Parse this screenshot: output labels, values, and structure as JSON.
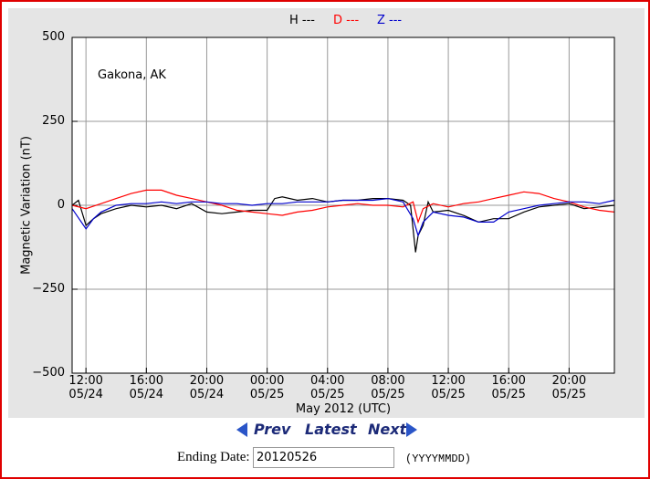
{
  "chart_data": {
    "type": "line",
    "annotation": "Gakona, AK",
    "xlabel": "May 2012 (UTC)",
    "ylabel": "Magnetic Variation (nT)",
    "xlim": [
      "2012-05-24T11:05",
      "2012-05-25T23:00"
    ],
    "xticks": [
      {
        "value": "2012-05-24T12:00",
        "label": "12:00\n05/24"
      },
      {
        "value": "2012-05-24T16:00",
        "label": "16:00\n05/24"
      },
      {
        "value": "2012-05-24T20:00",
        "label": "20:00\n05/24"
      },
      {
        "value": "2012-05-25T00:00",
        "label": "00:00\n05/25"
      },
      {
        "value": "2012-05-25T04:00",
        "label": "04:00\n05/25"
      },
      {
        "value": "2012-05-25T08:00",
        "label": "08:00\n05/25"
      },
      {
        "value": "2012-05-25T12:00",
        "label": "12:00\n05/25"
      },
      {
        "value": "2012-05-25T16:00",
        "label": "16:00\n05/25"
      },
      {
        "value": "2012-05-25T20:00",
        "label": "20:00\n05/25"
      }
    ],
    "ylim": [
      -500,
      500
    ],
    "yticks": [
      {
        "value": -500,
        "label": "−500"
      },
      {
        "value": -250,
        "label": "−250"
      },
      0,
      250,
      500
    ],
    "grid": true,
    "series": [
      {
        "name": "H ---",
        "color": "#000000",
        "x": [
          "2012-05-24T11:05",
          "2012-05-24T11:30",
          "2012-05-24T12:00",
          "2012-05-24T12:30",
          "2012-05-24T13:00",
          "2012-05-24T14:00",
          "2012-05-24T15:00",
          "2012-05-24T16:00",
          "2012-05-24T17:00",
          "2012-05-24T18:00",
          "2012-05-24T19:00",
          "2012-05-24T20:00",
          "2012-05-24T21:00",
          "2012-05-24T22:00",
          "2012-05-24T23:00",
          "2012-05-25T00:00",
          "2012-05-25T00:30",
          "2012-05-25T01:00",
          "2012-05-25T02:00",
          "2012-05-25T03:00",
          "2012-05-25T04:00",
          "2012-05-25T05:00",
          "2012-05-25T06:00",
          "2012-05-25T07:00",
          "2012-05-25T08:00",
          "2012-05-25T09:00",
          "2012-05-25T09:30",
          "2012-05-25T09:50",
          "2012-05-25T10:00",
          "2012-05-25T10:20",
          "2012-05-25T10:40",
          "2012-05-25T11:00",
          "2012-05-25T12:00",
          "2012-05-25T13:00",
          "2012-05-25T14:00",
          "2012-05-25T15:00",
          "2012-05-25T16:00",
          "2012-05-25T17:00",
          "2012-05-25T18:00",
          "2012-05-25T19:00",
          "2012-05-25T20:00",
          "2012-05-25T21:00",
          "2012-05-25T22:00",
          "2012-05-25T23:00"
        ],
        "values": [
          0,
          15,
          -60,
          -40,
          -25,
          -10,
          0,
          -5,
          0,
          -10,
          5,
          -20,
          -25,
          -20,
          -15,
          -15,
          20,
          25,
          15,
          20,
          10,
          15,
          15,
          20,
          20,
          15,
          0,
          -140,
          -90,
          -60,
          10,
          -20,
          -15,
          -30,
          -50,
          -40,
          -40,
          -20,
          -5,
          0,
          5,
          -10,
          -5,
          0
        ]
      },
      {
        "name": "D ---",
        "color": "#ff0000",
        "x": [
          "2012-05-24T11:05",
          "2012-05-24T12:00",
          "2012-05-24T13:00",
          "2012-05-24T14:00",
          "2012-05-24T15:00",
          "2012-05-24T16:00",
          "2012-05-24T17:00",
          "2012-05-24T18:00",
          "2012-05-24T19:00",
          "2012-05-24T20:00",
          "2012-05-24T21:00",
          "2012-05-24T22:00",
          "2012-05-24T23:00",
          "2012-05-25T00:00",
          "2012-05-25T01:00",
          "2012-05-25T02:00",
          "2012-05-25T03:00",
          "2012-05-25T04:00",
          "2012-05-25T05:00",
          "2012-05-25T06:00",
          "2012-05-25T07:00",
          "2012-05-25T08:00",
          "2012-05-25T09:00",
          "2012-05-25T09:40",
          "2012-05-25T10:00",
          "2012-05-25T10:20",
          "2012-05-25T11:00",
          "2012-05-25T12:00",
          "2012-05-25T13:00",
          "2012-05-25T14:00",
          "2012-05-25T15:00",
          "2012-05-25T16:00",
          "2012-05-25T17:00",
          "2012-05-25T18:00",
          "2012-05-25T19:00",
          "2012-05-25T20:00",
          "2012-05-25T21:00",
          "2012-05-25T22:00",
          "2012-05-25T23:00"
        ],
        "values": [
          0,
          -10,
          5,
          20,
          35,
          45,
          45,
          30,
          20,
          10,
          0,
          -15,
          -20,
          -25,
          -30,
          -20,
          -15,
          -5,
          0,
          5,
          0,
          0,
          -5,
          10,
          -50,
          -10,
          5,
          -5,
          5,
          10,
          20,
          30,
          40,
          35,
          20,
          10,
          -5,
          -15,
          -20
        ]
      },
      {
        "name": "Z ---",
        "color": "#0000cc",
        "x": [
          "2012-05-24T11:05",
          "2012-05-24T12:00",
          "2012-05-24T12:30",
          "2012-05-24T13:00",
          "2012-05-24T14:00",
          "2012-05-24T15:00",
          "2012-05-24T16:00",
          "2012-05-24T17:00",
          "2012-05-24T18:00",
          "2012-05-24T19:00",
          "2012-05-24T20:00",
          "2012-05-24T21:00",
          "2012-05-24T22:00",
          "2012-05-24T23:00",
          "2012-05-25T00:00",
          "2012-05-25T01:00",
          "2012-05-25T02:00",
          "2012-05-25T03:00",
          "2012-05-25T04:00",
          "2012-05-25T05:00",
          "2012-05-25T06:00",
          "2012-05-25T07:00",
          "2012-05-25T08:00",
          "2012-05-25T09:00",
          "2012-05-25T09:40",
          "2012-05-25T10:00",
          "2012-05-25T10:20",
          "2012-05-25T11:00",
          "2012-05-25T12:00",
          "2012-05-25T13:00",
          "2012-05-25T14:00",
          "2012-05-25T15:00",
          "2012-05-25T16:00",
          "2012-05-25T17:00",
          "2012-05-25T18:00",
          "2012-05-25T19:00",
          "2012-05-25T20:00",
          "2012-05-25T21:00",
          "2012-05-25T22:00",
          "2012-05-25T23:00"
        ],
        "values": [
          -10,
          -70,
          -40,
          -20,
          0,
          5,
          5,
          10,
          5,
          10,
          10,
          5,
          5,
          0,
          5,
          5,
          10,
          10,
          10,
          15,
          15,
          15,
          20,
          10,
          -40,
          -90,
          -50,
          -20,
          -30,
          -35,
          -50,
          -50,
          -20,
          -10,
          0,
          5,
          10,
          10,
          5,
          15
        ]
      }
    ]
  },
  "nav": {
    "prev": "Prev",
    "latest": "Latest",
    "next": "Next"
  },
  "form": {
    "label": "Ending Date:",
    "value": "20120526",
    "hint": "(YYYYMMDD)"
  }
}
